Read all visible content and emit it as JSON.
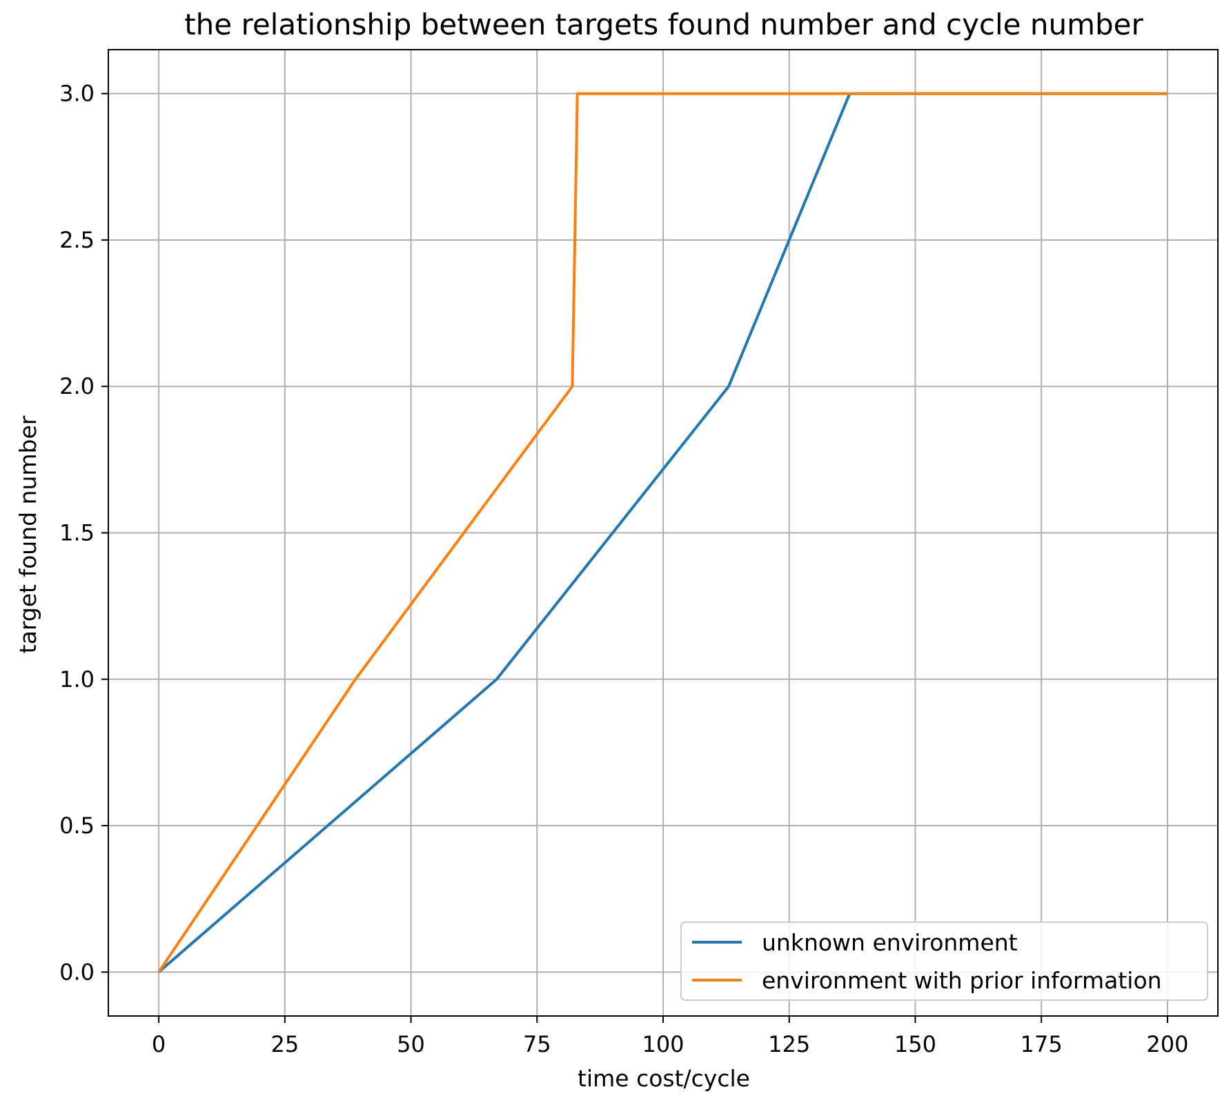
{
  "chart_data": {
    "type": "line",
    "title": "the relationship between targets found number and cycle number",
    "xlabel": "time cost/cycle",
    "ylabel": "target found number",
    "xlim": [
      -10,
      210
    ],
    "ylim": [
      -0.15,
      3.15
    ],
    "xticks": [
      0,
      25,
      50,
      75,
      100,
      125,
      150,
      175,
      200
    ],
    "xtick_labels": [
      "0",
      "25",
      "50",
      "75",
      "100",
      "125",
      "150",
      "175",
      "200"
    ],
    "yticks": [
      0.0,
      0.5,
      1.0,
      1.5,
      2.0,
      2.5,
      3.0
    ],
    "ytick_labels": [
      "0.0",
      "0.5",
      "1.0",
      "1.5",
      "2.0",
      "2.5",
      "3.0"
    ],
    "grid": true,
    "legend_position": "lower-right",
    "series": [
      {
        "name": "unknown environment",
        "color": "#1f77b4",
        "x": [
          0,
          67,
          113,
          137,
          200
        ],
        "y": [
          0,
          1,
          2,
          3,
          3
        ]
      },
      {
        "name": "environment with prior information",
        "color": "#ff7f0e",
        "x": [
          0,
          39,
          82,
          83,
          200
        ],
        "y": [
          0,
          1,
          2,
          3,
          3
        ]
      }
    ]
  }
}
